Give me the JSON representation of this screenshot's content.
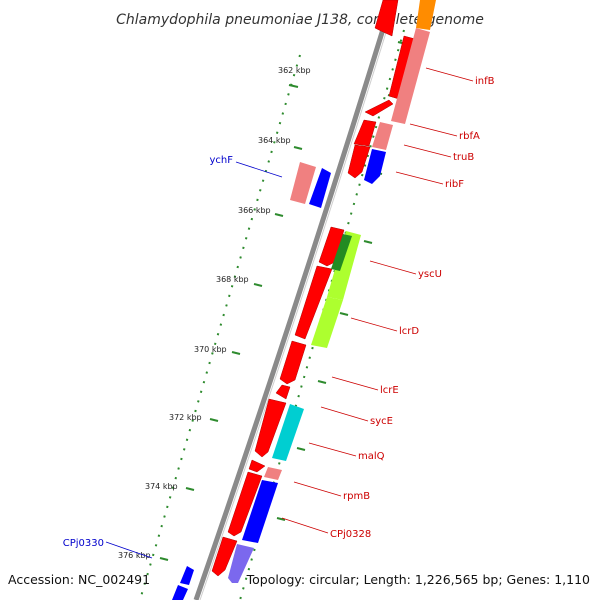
{
  "title": "Chlamydophila pneumoniae J138, complete genome",
  "accession_text": "Accession: NC_002491",
  "summary_text": "Topology: circular; Length: 1,226,565 bp; Genes: 1,110",
  "colors": {
    "backbone": "#808080",
    "tick_dots": "#2e8b2e",
    "forward_labels": "#cc0000",
    "reverse_labels": "#0000cc"
  },
  "ticks": [
    {
      "label": "362 kbp"
    },
    {
      "label": "364 kbp"
    },
    {
      "label": "366 kbp"
    },
    {
      "label": "368 kbp"
    },
    {
      "label": "370 kbp"
    },
    {
      "label": "372 kbp"
    },
    {
      "label": "374 kbp"
    },
    {
      "label": "376 kbp"
    }
  ],
  "gene_labels": [
    {
      "name": "infB",
      "color": "#cc0000"
    },
    {
      "name": "rbfA",
      "color": "#cc0000"
    },
    {
      "name": "truB",
      "color": "#cc0000"
    },
    {
      "name": "ribF",
      "color": "#cc0000"
    },
    {
      "name": "yscU",
      "color": "#cc0000"
    },
    {
      "name": "lcrD",
      "color": "#cc0000"
    },
    {
      "name": "lcrE",
      "color": "#cc0000"
    },
    {
      "name": "sycE",
      "color": "#cc0000"
    },
    {
      "name": "malQ",
      "color": "#cc0000"
    },
    {
      "name": "rpmB",
      "color": "#cc0000"
    },
    {
      "name": "CPj0328",
      "color": "#cc0000"
    },
    {
      "name": "ychF",
      "color": "#0000cc"
    },
    {
      "name": "CPj0330",
      "color": "#0000cc"
    }
  ]
}
